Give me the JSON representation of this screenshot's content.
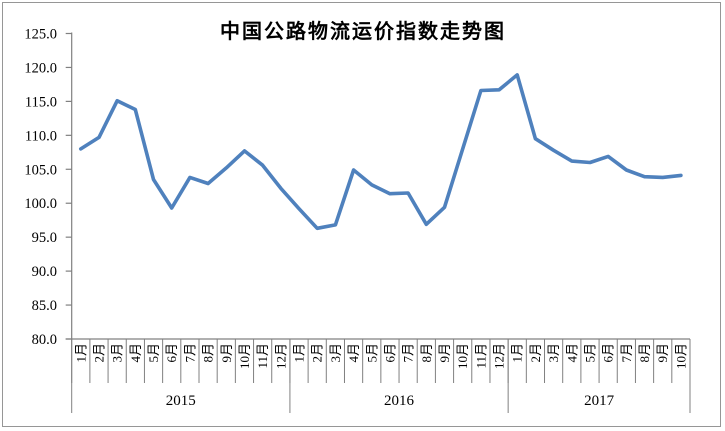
{
  "chart_data": {
    "type": "line",
    "title": "中国公路物流运价指数走势图",
    "xlabel": "",
    "ylabel": "",
    "ylim": [
      80,
      125
    ],
    "ytick_step": 5,
    "ytick_labels": [
      "125.0",
      "120.0",
      "115.0",
      "110.0",
      "105.0",
      "100.0",
      "95.0",
      "90.0",
      "85.0",
      "80.0"
    ],
    "grid": false,
    "legend": "none",
    "line_color": "#4F81BD",
    "axis_color": "#808080",
    "text_color": "#000000",
    "years": [
      {
        "label": "2015",
        "months": [
          "1月",
          "2月",
          "3月",
          "4月",
          "5月",
          "6月",
          "7月",
          "8月",
          "9月",
          "10月",
          "11月",
          "12月"
        ]
      },
      {
        "label": "2016",
        "months": [
          "1月",
          "2月",
          "3月",
          "4月",
          "5月",
          "6月",
          "7月",
          "8月",
          "9月",
          "10月",
          "11月",
          "12月"
        ]
      },
      {
        "label": "2017",
        "months": [
          "1月",
          "2月",
          "3月",
          "4月",
          "5月",
          "6月",
          "7月",
          "8月",
          "9月",
          "10月"
        ]
      }
    ],
    "values": [
      108.0,
      109.7,
      115.1,
      113.8,
      103.5,
      99.3,
      103.8,
      102.9,
      105.2,
      107.7,
      105.6,
      102.2,
      99.2,
      96.3,
      96.8,
      104.9,
      102.7,
      101.4,
      101.5,
      96.9,
      99.4,
      108.0,
      116.6,
      116.7,
      118.9,
      109.5,
      107.8,
      106.2,
      106.0,
      106.9,
      104.9,
      103.9,
      103.8,
      104.1
    ]
  }
}
